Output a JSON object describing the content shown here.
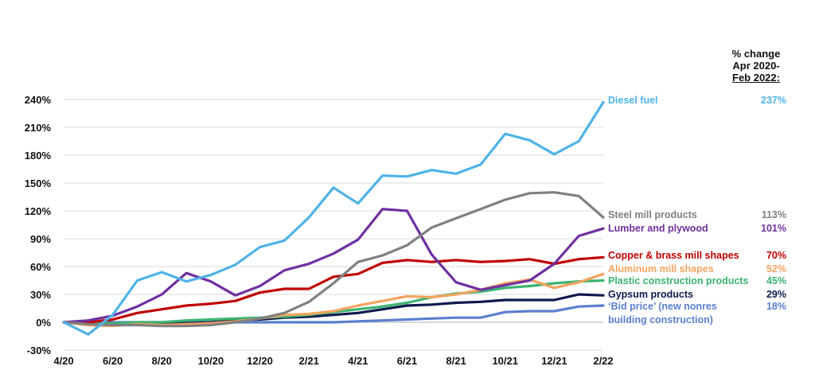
{
  "header": {
    "line1": "% change",
    "line2": "Apr 2020-",
    "line3": "Feb 2022:"
  },
  "chart_data": {
    "type": "line",
    "title": "",
    "xlabel": "",
    "ylabel": "",
    "ylim": [
      -30,
      240
    ],
    "yticks": [
      "-30%",
      "0%",
      "30%",
      "60%",
      "90%",
      "120%",
      "150%",
      "180%",
      "210%",
      "240%"
    ],
    "ytick_values": [
      -30,
      0,
      30,
      60,
      90,
      120,
      150,
      180,
      210,
      240
    ],
    "x": [
      "4/20",
      "5/20",
      "6/20",
      "7/20",
      "8/20",
      "9/20",
      "10/20",
      "11/20",
      "12/20",
      "1/21",
      "2/21",
      "3/21",
      "4/21",
      "5/21",
      "6/21",
      "7/21",
      "8/21",
      "9/21",
      "10/21",
      "11/21",
      "12/21",
      "1/22",
      "2/22"
    ],
    "xtick_labels": [
      "4/20",
      "6/20",
      "8/20",
      "10/20",
      "12/20",
      "2/21",
      "4/21",
      "6/21",
      "8/21",
      "10/21",
      "12/21",
      "2/22"
    ],
    "grid": "horizontal",
    "series": [
      {
        "name": "Diesel fuel",
        "pct": "237%",
        "color": "#4fb3e8",
        "values": [
          0,
          -13,
          8,
          45,
          54,
          44,
          51,
          62,
          81,
          88,
          113,
          145,
          128,
          158,
          157,
          164,
          160,
          170,
          203,
          196,
          181,
          195,
          237
        ]
      },
      {
        "name": "Steel mill products",
        "pct": "113%",
        "color": "#808080",
        "values": [
          0,
          -2,
          -3,
          -3,
          -4,
          -4,
          -3,
          0,
          4,
          10,
          22,
          42,
          65,
          72,
          83,
          102,
          112,
          122,
          132,
          139,
          140,
          136,
          113
        ]
      },
      {
        "name": "Lumber and plywood",
        "pct": "101%",
        "color": "#7030a0",
        "values": [
          0,
          2,
          7,
          17,
          30,
          53,
          44,
          29,
          39,
          56,
          63,
          74,
          89,
          122,
          120,
          73,
          43,
          35,
          40,
          45,
          63,
          93,
          101
        ]
      },
      {
        "name": "Copper & brass mill shapes",
        "pct": "70%",
        "color": "#c00000",
        "values": [
          0,
          0,
          3,
          10,
          14,
          18,
          20,
          23,
          32,
          36,
          36,
          49,
          52,
          64,
          67,
          65,
          67,
          65,
          66,
          68,
          63,
          68,
          70
        ]
      },
      {
        "name": "Aluminum mill shapes",
        "pct": "52%",
        "color": "#f4a460",
        "values": [
          0,
          -3,
          -4,
          -2,
          -3,
          -2,
          -1,
          1,
          4,
          8,
          9,
          12,
          18,
          23,
          28,
          27,
          30,
          35,
          42,
          46,
          37,
          43,
          52
        ]
      },
      {
        "name": "Plastic construction products",
        "pct": "45%",
        "color": "#3cb371",
        "values": [
          0,
          -1,
          -1,
          0,
          0,
          2,
          3,
          4,
          5,
          6,
          8,
          11,
          14,
          17,
          21,
          27,
          31,
          33,
          37,
          39,
          42,
          44,
          45
        ]
      },
      {
        "name": "Gypsum products",
        "pct": "29%",
        "color": "#0d1a4d",
        "values": [
          0,
          -1,
          -1,
          -1,
          -1,
          -1,
          0,
          2,
          3,
          5,
          6,
          8,
          10,
          14,
          18,
          19,
          21,
          22,
          24,
          24,
          24,
          30,
          29
        ]
      },
      {
        "name": "‘Bid price’ (new nonres\nbuilding  construction)",
        "pct": "18%",
        "color": "#5b7fcf",
        "values": [
          0,
          0,
          0,
          0,
          0,
          0,
          0,
          0,
          0,
          0,
          0,
          0,
          1,
          2,
          3,
          4,
          5,
          5,
          11,
          12,
          12,
          17,
          18
        ]
      }
    ]
  }
}
